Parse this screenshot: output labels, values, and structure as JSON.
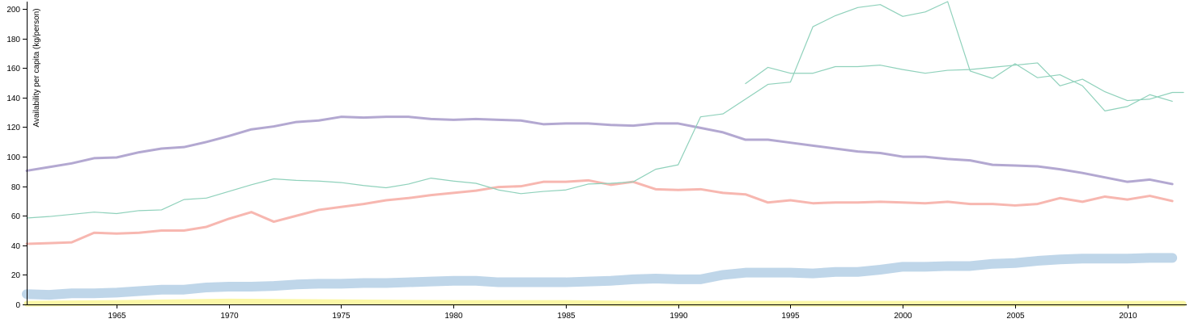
{
  "chart_data": {
    "type": "line",
    "title": "",
    "xlabel": "",
    "ylabel": "Availability per capita (kg/person)",
    "xlim": [
      1961,
      2012.5
    ],
    "ylim": [
      0,
      205
    ],
    "x_ticks": [
      1965,
      1970,
      1975,
      1980,
      1985,
      1990,
      1995,
      2000,
      2005,
      2010
    ],
    "y_ticks": [
      0,
      20,
      40,
      60,
      80,
      100,
      120,
      140,
      160,
      180,
      200
    ],
    "grid": false,
    "series": [
      {
        "color": "#b3a8d1",
        "width": 3,
        "x": [
          1961,
          1962,
          1963,
          1964,
          1965,
          1966,
          1967,
          1968,
          1969,
          1970,
          1971,
          1972,
          1973,
          1974,
          1975,
          1976,
          1977,
          1978,
          1979,
          1980,
          1981,
          1982,
          1983,
          1984,
          1985,
          1986,
          1987,
          1988,
          1989,
          1990,
          1991,
          1992,
          1993,
          1994,
          1995,
          1996,
          1997,
          1998,
          1999,
          2000,
          2001,
          2002,
          2003,
          2004,
          2005,
          2006,
          2007,
          2008,
          2009,
          2010,
          2011,
          2012
        ],
        "values": [
          90.5,
          93,
          95.5,
          99,
          99.5,
          103,
          105.5,
          106.5,
          110,
          114,
          118.5,
          120.5,
          123.5,
          124.5,
          127,
          126.5,
          127,
          127,
          125.5,
          125,
          125.5,
          125,
          124.5,
          122,
          122.5,
          122.5,
          121.5,
          121,
          122.5,
          122.5,
          119.5,
          116.5,
          111.5,
          111.5,
          109.5,
          107.5,
          105.5,
          103.5,
          102.5,
          100,
          100,
          98.5,
          97.5,
          94.5,
          94,
          93.5,
          91.5,
          89,
          86,
          83,
          84.5,
          81.5
        ]
      },
      {
        "color": "#f7b7b0",
        "width": 3,
        "x": [
          1961,
          1962,
          1963,
          1964,
          1965,
          1966,
          1967,
          1968,
          1969,
          1970,
          1971,
          1972,
          1973,
          1974,
          1975,
          1976,
          1977,
          1978,
          1979,
          1980,
          1981,
          1982,
          1983,
          1984,
          1985,
          1986,
          1987,
          1988,
          1989,
          1990,
          1991,
          1992,
          1993,
          1994,
          1995,
          1996,
          1997,
          1998,
          1999,
          2000,
          2001,
          2002,
          2003,
          2004,
          2005,
          2006,
          2007,
          2008,
          2009,
          2010,
          2011,
          2012
        ],
        "values": [
          41,
          41.5,
          42,
          48.5,
          48,
          48.5,
          50,
          50,
          52.5,
          58,
          62.5,
          56,
          60,
          64,
          66,
          68,
          70.5,
          72,
          74,
          75.5,
          77,
          79.5,
          80,
          83,
          83,
          84,
          81,
          83,
          78,
          77.5,
          78,
          75.5,
          74.5,
          69,
          70.5,
          68.5,
          69,
          69,
          69.5,
          69,
          68.5,
          69.5,
          68,
          68,
          67,
          68,
          72,
          69.5,
          73,
          71,
          73.5,
          70
        ]
      },
      {
        "color": "#8fd1bb",
        "width": 1.2,
        "x": [
          1961,
          1962,
          1963,
          1964,
          1965,
          1966,
          1967,
          1968,
          1969,
          1970,
          1971,
          1972,
          1973,
          1974,
          1975,
          1976,
          1977,
          1978,
          1979,
          1980,
          1981,
          1982,
          1983,
          1984,
          1985,
          1986,
          1987,
          1988,
          1989,
          1990,
          1991,
          1992,
          1993,
          1994,
          1995,
          1996,
          1997,
          1998,
          1999,
          2000,
          2001,
          2002,
          2003,
          2004,
          2005,
          2006,
          2007,
          2008,
          2009,
          2010,
          2011,
          2012
        ],
        "values": [
          58.5,
          59.5,
          61,
          62.5,
          61.5,
          63.5,
          64,
          71,
          72,
          76.5,
          81,
          85,
          84,
          83.5,
          82.5,
          80.5,
          79,
          81.5,
          85.5,
          83.5,
          82,
          77.5,
          75,
          76.5,
          77.5,
          81.5,
          82,
          83,
          91.5,
          94.5,
          127,
          129,
          139,
          149,
          150.5,
          188,
          195.5,
          201,
          203,
          195,
          198,
          205,
          158,
          153,
          163,
          153.5,
          155.5,
          148,
          131,
          134,
          142,
          137.5
        ]
      },
      {
        "color": "#8fd1bb",
        "width": 1.2,
        "x": [
          1993,
          1994,
          1995,
          1996,
          1997,
          1998,
          1999,
          2000,
          2001,
          2002,
          2003,
          2004,
          2005,
          2006,
          2007,
          2008,
          2009,
          2010,
          2011,
          2012,
          2012.5
        ],
        "values": [
          149.5,
          160.5,
          156.5,
          156.5,
          161,
          161,
          162,
          159,
          156.5,
          158.5,
          159,
          160.5,
          162,
          163.5,
          148,
          152.5,
          144,
          138,
          139,
          143.5,
          143.5
        ]
      },
      {
        "color": "#bfd6e9",
        "width": 12,
        "x": [
          1961,
          1962,
          1963,
          1964,
          1965,
          1966,
          1967,
          1968,
          1969,
          1970,
          1971,
          1972,
          1973,
          1974,
          1975,
          1976,
          1977,
          1978,
          1979,
          1980,
          1981,
          1982,
          1983,
          1984,
          1985,
          1986,
          1987,
          1988,
          1989,
          1990,
          1991,
          1992,
          1993,
          1994,
          1995,
          1996,
          1997,
          1998,
          1999,
          2000,
          2001,
          2002,
          2003,
          2004,
          2005,
          2006,
          2007,
          2008,
          2009,
          2010,
          2011,
          2012
        ],
        "values": [
          7,
          6.5,
          7.5,
          7.5,
          8,
          9,
          10,
          10,
          11.5,
          12,
          12,
          12.5,
          13.5,
          14,
          14,
          14.5,
          14.5,
          15,
          15.5,
          16,
          16,
          15,
          15,
          15,
          15,
          15.5,
          16,
          17,
          17.5,
          17,
          17,
          20,
          21.5,
          21.5,
          21.5,
          21,
          22,
          22,
          23.5,
          25.5,
          25.5,
          26,
          26,
          27.5,
          28,
          29.5,
          30.5,
          31,
          31,
          31,
          31.5,
          31.5
        ]
      },
      {
        "color": "#fbf7a6",
        "width": 7,
        "x": [
          1961,
          1965,
          1970,
          1975,
          1980,
          1985,
          1988,
          1990,
          1995,
          2000,
          2005,
          2010,
          2012.5
        ],
        "values": [
          0.5,
          1,
          2,
          1.5,
          1,
          1,
          0.5,
          0.5,
          0.5,
          0.5,
          0.5,
          0.5,
          0.5
        ]
      }
    ]
  }
}
